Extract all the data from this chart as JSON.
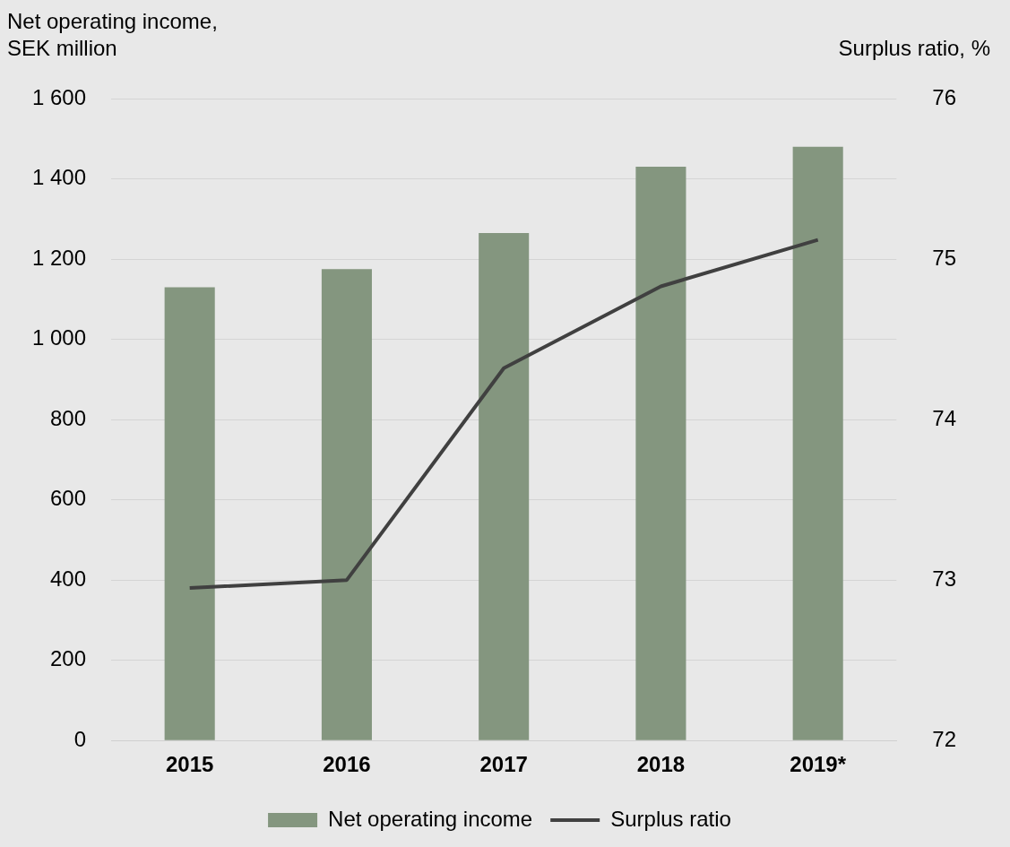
{
  "chart_data": {
    "type": "bar",
    "ylabel": "Net operating income, SEK million",
    "y2label": "Surplus ratio, %",
    "categories": [
      "2015",
      "2016",
      "2017",
      "2018",
      "2019*"
    ],
    "series": [
      {
        "name": "Net operating income",
        "color": "#84967f",
        "values": [
          1130,
          1175,
          1265,
          1430,
          1480
        ]
      },
      {
        "name": "Surplus ratio",
        "type": "line",
        "axis": "y2",
        "color": "#404040",
        "values": [
          72.95,
          73.0,
          74.32,
          74.83,
          75.12
        ]
      }
    ],
    "ylim": [
      0,
      1600
    ],
    "yticks": [
      0,
      200,
      400,
      600,
      800,
      {
        "value": 1000,
        "label": "1 000"
      },
      {
        "value": 1200,
        "label": "1 200"
      },
      {
        "value": 1400,
        "label": "1 400"
      },
      {
        "value": 1600,
        "label": "1 600"
      }
    ],
    "y2lim": [
      72,
      76
    ],
    "y2ticks": [
      72,
      73,
      74,
      75,
      76
    ],
    "grid": "y",
    "legend": "bottom",
    "marker": "none",
    "line_style": "solid"
  }
}
